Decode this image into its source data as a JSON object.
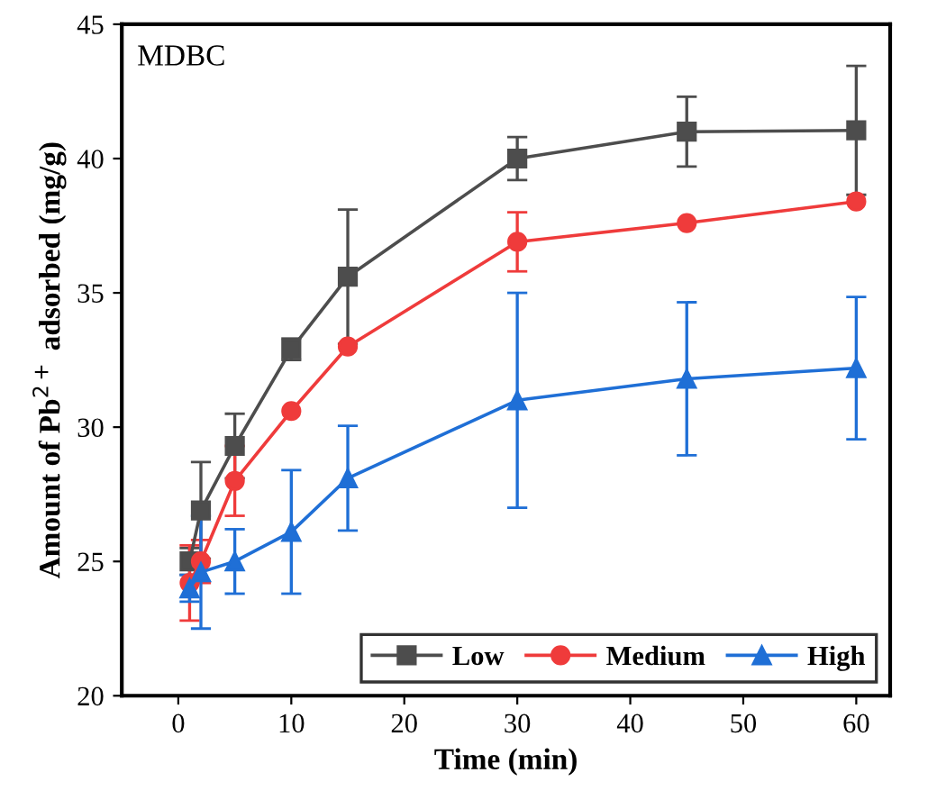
{
  "chart_data": {
    "type": "line",
    "xlabel": "Time (min)",
    "ylabel": "Amount of Pb$^{2+}$ adsorbed (mg/g)",
    "annotations": [
      "MDBC"
    ],
    "x": [
      1,
      2,
      5,
      10,
      15,
      30,
      45,
      60
    ],
    "series": [
      {
        "name": "Low",
        "color": "#4d4d4d",
        "marker": "square",
        "values": [
          25.0,
          26.9,
          29.3,
          32.9,
          35.6,
          40.0,
          41.0,
          41.05
        ],
        "errors": [
          0.5,
          1.8,
          1.2,
          0.4,
          2.5,
          0.8,
          1.3,
          2.4
        ]
      },
      {
        "name": "Medium",
        "color": "#ef3b3b",
        "marker": "circle",
        "values": [
          24.2,
          25.0,
          28.0,
          30.6,
          33.0,
          36.9,
          37.6,
          38.4
        ],
        "errors": [
          1.4,
          0.8,
          1.3,
          null,
          null,
          1.1,
          null,
          null
        ]
      },
      {
        "name": "High",
        "color": "#1f6fd6",
        "marker": "triangle",
        "values": [
          24.0,
          24.6,
          25.0,
          26.1,
          28.1,
          31.0,
          31.8,
          32.2
        ],
        "errors": [
          0.5,
          2.1,
          1.2,
          2.3,
          1.95,
          4.0,
          2.85,
          2.65
        ]
      }
    ],
    "xlim": [
      -5,
      63
    ],
    "xticks": [
      0,
      10,
      20,
      30,
      40,
      50,
      60
    ],
    "ylim": [
      20,
      45
    ],
    "yticks": [
      20,
      25,
      30,
      35,
      40,
      45
    ],
    "grid": false,
    "legend": "bottom right",
    "line_style": "solid"
  }
}
